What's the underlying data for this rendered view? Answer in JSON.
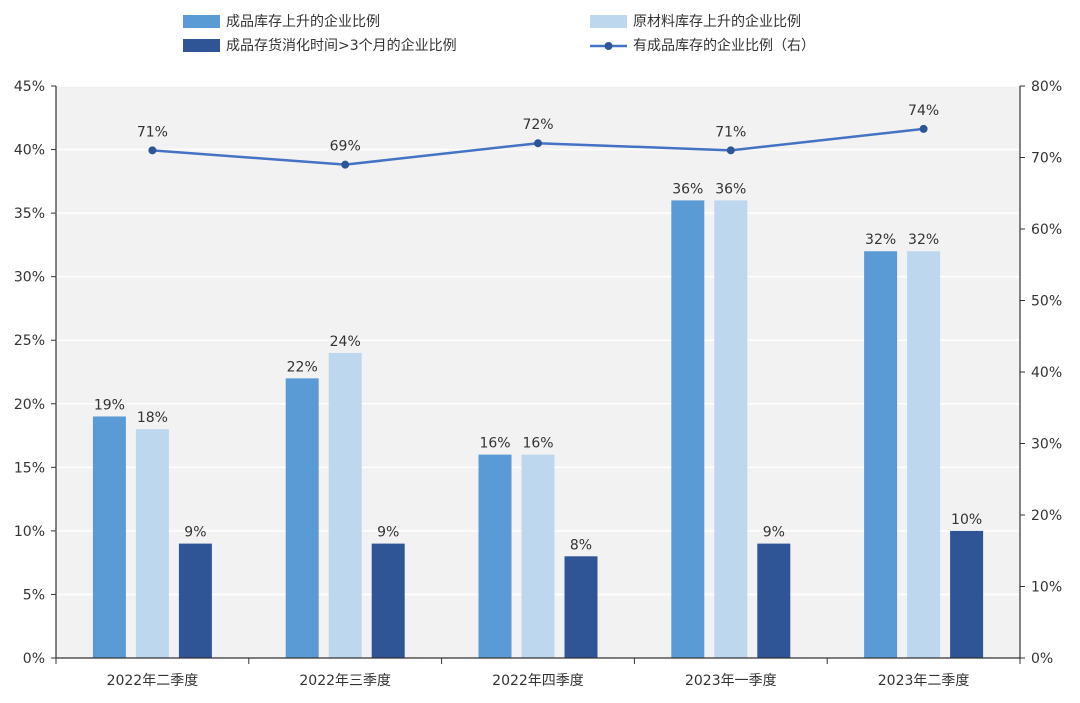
{
  "chart_data": {
    "type": "bar",
    "categories": [
      "2022年二季度",
      "2022年三季度",
      "2022年四季度",
      "2023年一季度",
      "2023年二季度"
    ],
    "series": [
      {
        "name": "成品库存上升的企业比例",
        "type": "bar",
        "axis": "left",
        "color": "#5b9bd5",
        "values": [
          19,
          22,
          16,
          36,
          32
        ],
        "value_labels": [
          "19%",
          "22%",
          "16%",
          "36%",
          "32%"
        ]
      },
      {
        "name": "原材料库存上升的企业比例",
        "type": "bar",
        "axis": "left",
        "color": "#bdd7ee",
        "values": [
          18,
          24,
          16,
          36,
          32
        ],
        "value_labels": [
          "18%",
          "24%",
          "16%",
          "36%",
          "32%"
        ]
      },
      {
        "name": "成品存货消化时间>3个月的企业比例",
        "type": "bar",
        "axis": "left",
        "color": "#2f5597",
        "values": [
          9,
          9,
          8,
          9,
          10
        ],
        "value_labels": [
          "9%",
          "9%",
          "8%",
          "9%",
          "10%"
        ]
      },
      {
        "name": "有成品库存的企业比例（右）",
        "type": "line",
        "axis": "right",
        "color": "#4472c4",
        "values": [
          71,
          69,
          72,
          71,
          74
        ],
        "value_labels": [
          "71%",
          "69%",
          "72%",
          "71%",
          "74%"
        ]
      }
    ],
    "y_left": {
      "ylim": [
        0,
        45
      ],
      "ticks": [
        "0%",
        "5%",
        "10%",
        "15%",
        "20%",
        "25%",
        "30%",
        "35%",
        "40%",
        "45%"
      ]
    },
    "y_right": {
      "ylim": [
        0,
        80
      ],
      "ticks": [
        "0%",
        "10%",
        "20%",
        "30%",
        "40%",
        "50%",
        "60%",
        "70%",
        "80%"
      ]
    },
    "grid": true,
    "plot_background": "#f2f2f2",
    "legend": "top"
  }
}
